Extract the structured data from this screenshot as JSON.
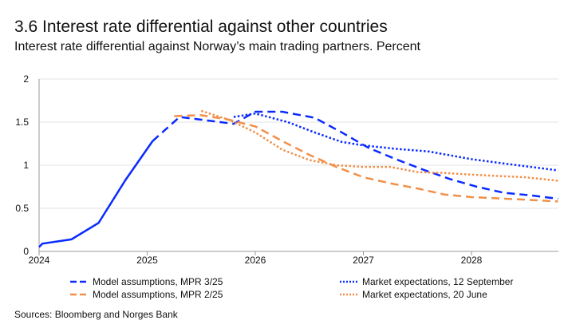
{
  "title": "3.6 Interest rate differential against other countries",
  "subtitle": "Interest rate differential against Norway’s main trading partners. Percent",
  "source": "Sources: Bloomberg and Norges Bank",
  "chart_data": {
    "type": "line",
    "xlim": [
      2024,
      2028.85
    ],
    "ylim": [
      0,
      2
    ],
    "x_ticks": [
      "2024",
      "2025",
      "2026",
      "2027",
      "2028"
    ],
    "y_ticks": [
      "0",
      "0.5",
      "1",
      "1.5",
      "2"
    ],
    "grid": "horizontal",
    "legend_placement": "bottom",
    "series": [
      {
        "name": "Model assumptions, MPR 3/25",
        "color": "#0a2bff",
        "style": "dashed",
        "history": {
          "x": [
            2024.0,
            2024.03,
            2024.3,
            2024.55,
            2024.8,
            2025.05
          ],
          "y": [
            0.05,
            0.09,
            0.14,
            0.33,
            0.83,
            1.28
          ]
        },
        "x": [
          2025.05,
          2025.3,
          2025.55,
          2025.8,
          2026.0,
          2026.25,
          2026.55,
          2026.8,
          2027.05,
          2027.3,
          2027.55,
          2027.8,
          2028.05,
          2028.3,
          2028.55,
          2028.8
        ],
        "y": [
          1.28,
          1.56,
          1.52,
          1.48,
          1.62,
          1.62,
          1.55,
          1.38,
          1.2,
          1.07,
          0.95,
          0.84,
          0.75,
          0.68,
          0.65,
          0.61
        ]
      },
      {
        "name": "Market expectations, 12 September",
        "color": "#0a2bff",
        "style": "dotted",
        "x": [
          2025.8,
          2026.0,
          2026.3,
          2026.55,
          2026.8,
          2027.0,
          2027.3,
          2027.6,
          2028.0,
          2028.3,
          2028.8
        ],
        "y": [
          1.56,
          1.6,
          1.5,
          1.38,
          1.27,
          1.23,
          1.19,
          1.16,
          1.07,
          1.02,
          0.94
        ]
      },
      {
        "name": "Model assumptions, MPR 2/25",
        "color": "#f0904a",
        "style": "dashed",
        "x": [
          2025.25,
          2025.5,
          2025.75,
          2026.0,
          2026.25,
          2026.5,
          2026.75,
          2027.0,
          2027.25,
          2027.5,
          2027.75,
          2028.0,
          2028.5,
          2028.8
        ],
        "y": [
          1.57,
          1.58,
          1.53,
          1.45,
          1.28,
          1.12,
          0.98,
          0.86,
          0.79,
          0.73,
          0.66,
          0.63,
          0.6,
          0.58
        ]
      },
      {
        "name": "Market expectations, 20 June",
        "color": "#f0904a",
        "style": "dotted",
        "x": [
          2025.5,
          2025.75,
          2026.0,
          2026.25,
          2026.5,
          2026.75,
          2027.0,
          2027.25,
          2027.5,
          2027.75,
          2028.0,
          2028.5,
          2028.8
        ],
        "y": [
          1.63,
          1.53,
          1.38,
          1.18,
          1.06,
          1.0,
          0.98,
          0.98,
          0.92,
          0.91,
          0.89,
          0.86,
          0.82
        ]
      }
    ]
  }
}
